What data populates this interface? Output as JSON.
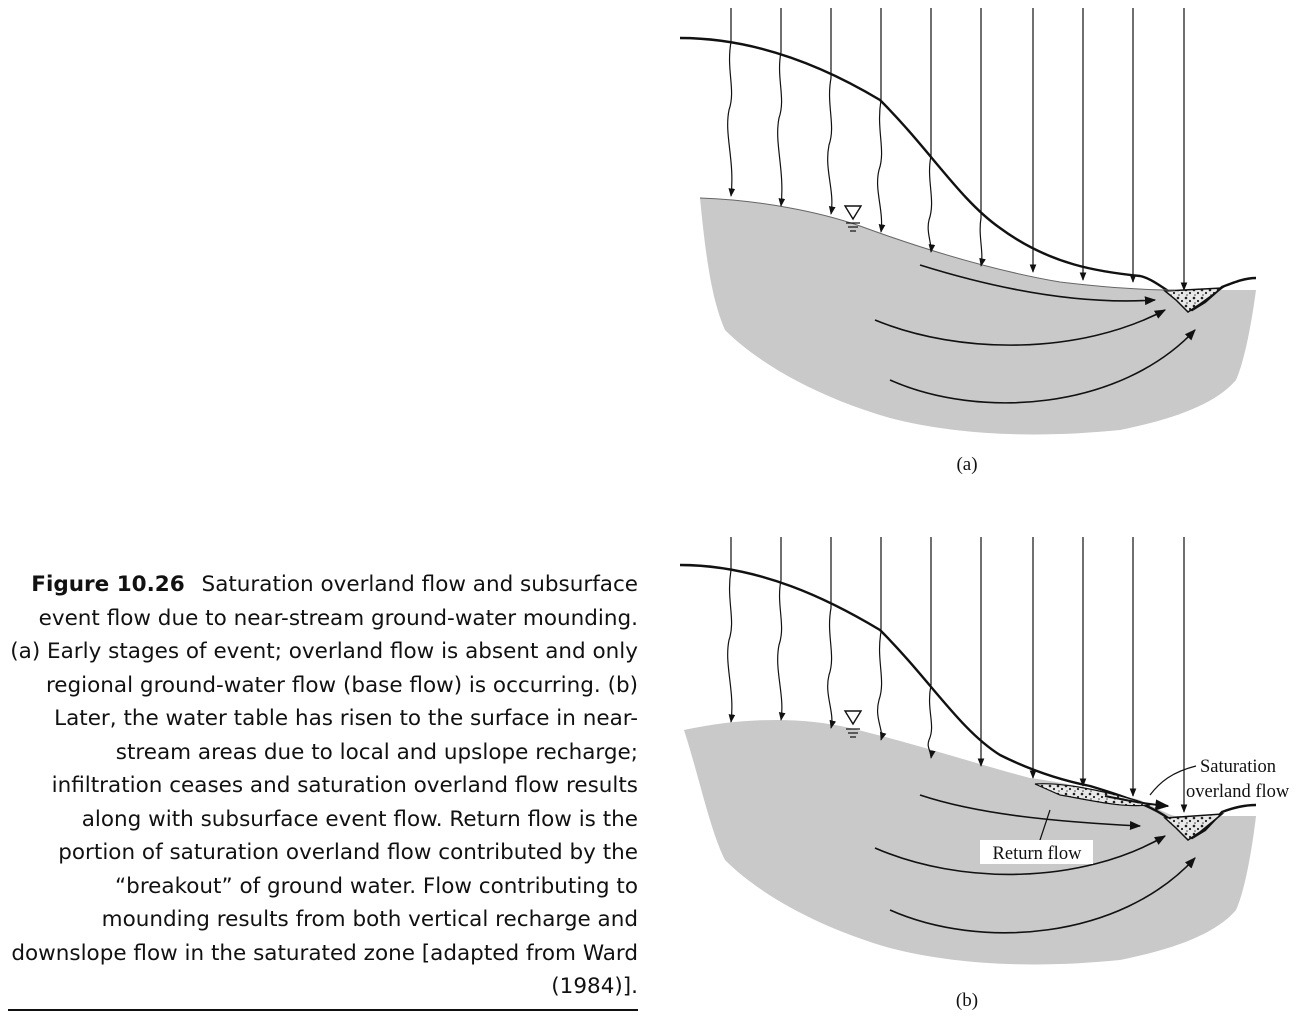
{
  "caption": {
    "label": "Figure 10.26",
    "text": "Saturation overland flow and subsurface event flow due to near-stream ground-water mounding. (a) Early stages of event; overland flow is absent and only regional ground-water flow (base flow) is occurring. (b) Later, the water table has risen to the surface in near-stream areas due to local and upslope recharge; infiltration ceases and saturation overland flow results along with subsurface event flow. Return flow is the portion of saturation overland flow contributed by the “breakout” of ground water. Flow contributing to mounding results from both vertical recharge and downslope flow in the saturated zone [adapted from Ward (1984)]."
  },
  "panel_a": {
    "label": "(a)"
  },
  "panel_b": {
    "label": "(b)",
    "annotations": {
      "saturation_overland_flow_line1": "Saturation",
      "saturation_overland_flow_line2": "overland flow",
      "return_flow": "Return flow"
    }
  },
  "colors": {
    "saturated_zone_fill": "#c9c9c9",
    "line": "#111111",
    "caption_text": "#111111"
  },
  "icons": {
    "water_table_marker": "inverted-triangle-water-table-icon"
  }
}
